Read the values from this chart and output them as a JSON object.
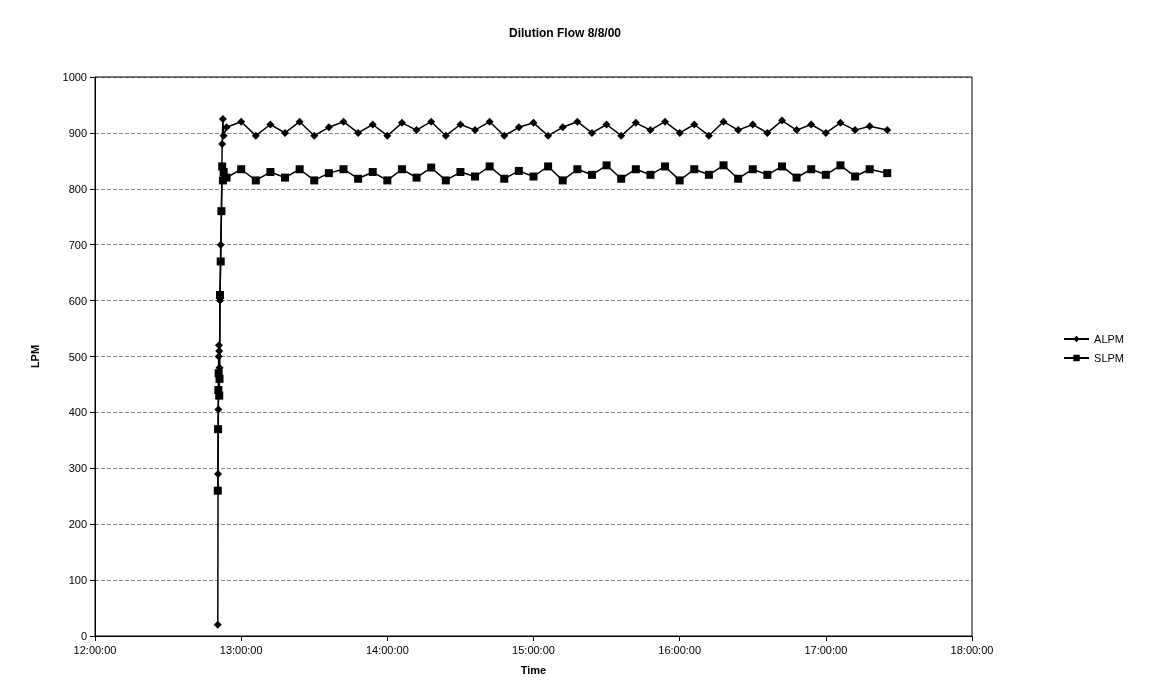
{
  "chart_data": {
    "type": "line",
    "title": "Dilution Flow 8/8/00",
    "xlabel": "Time",
    "ylabel": "LPM",
    "xlim": [
      12,
      18
    ],
    "xticks": [
      {
        "value": 12,
        "label": "12:00:00"
      },
      {
        "value": 13,
        "label": "13:00:00"
      },
      {
        "value": 14,
        "label": "14:00:00"
      },
      {
        "value": 15,
        "label": "15:00:00"
      },
      {
        "value": 16,
        "label": "16:00:00"
      },
      {
        "value": 17,
        "label": "17:00:00"
      },
      {
        "value": 18,
        "label": "18:00:00"
      }
    ],
    "ylim": [
      0,
      1000
    ],
    "yticks": [
      0,
      100,
      200,
      300,
      400,
      500,
      600,
      700,
      800,
      900,
      1000
    ],
    "grid": "y",
    "legend": "right",
    "line_style": "solid",
    "series": [
      {
        "name": "ALPM",
        "color": "#000000",
        "marker": "diamond",
        "x": [
          12.84,
          12.842,
          12.844,
          12.846,
          12.848,
          12.85,
          12.852,
          12.855,
          12.86,
          12.865,
          12.87,
          12.875,
          12.88,
          12.9,
          13.0,
          13.1,
          13.2,
          13.3,
          13.4,
          13.5,
          13.6,
          13.7,
          13.8,
          13.9,
          14.0,
          14.1,
          14.2,
          14.3,
          14.4,
          14.5,
          14.6,
          14.7,
          14.8,
          14.9,
          15.0,
          15.1,
          15.2,
          15.3,
          15.4,
          15.5,
          15.6,
          15.7,
          15.8,
          15.9,
          16.0,
          16.1,
          16.2,
          16.3,
          16.4,
          16.5,
          16.6,
          16.7,
          16.8,
          16.9,
          17.0,
          17.1,
          17.2,
          17.3,
          17.42
        ],
        "values": [
          20,
          290,
          405,
          500,
          520,
          510,
          480,
          600,
          700,
          760,
          880,
          925,
          895,
          910,
          920,
          895,
          915,
          900,
          920,
          895,
          910,
          920,
          900,
          915,
          895,
          918,
          905,
          920,
          895,
          915,
          905,
          920,
          895,
          910,
          918,
          895,
          910,
          920,
          900,
          915,
          895,
          918,
          905,
          920,
          900,
          915,
          895,
          920,
          905,
          915,
          900,
          922,
          905,
          915,
          900,
          918,
          905,
          912,
          905
        ]
      },
      {
        "name": "SLPM",
        "color": "#000000",
        "marker": "square",
        "x": [
          12.84,
          12.842,
          12.844,
          12.846,
          12.848,
          12.85,
          12.852,
          12.855,
          12.86,
          12.865,
          12.87,
          12.875,
          12.88,
          12.9,
          13.0,
          13.1,
          13.2,
          13.3,
          13.4,
          13.5,
          13.6,
          13.7,
          13.8,
          13.9,
          14.0,
          14.1,
          14.2,
          14.3,
          14.4,
          14.5,
          14.6,
          14.7,
          14.8,
          14.9,
          15.0,
          15.1,
          15.2,
          15.3,
          15.4,
          15.5,
          15.6,
          15.7,
          15.8,
          15.9,
          16.0,
          16.1,
          16.2,
          16.3,
          16.4,
          16.5,
          16.6,
          16.7,
          16.8,
          16.9,
          17.0,
          17.1,
          17.2,
          17.3,
          17.42
        ],
        "values": [
          260,
          370,
          440,
          470,
          null,
          430,
          460,
          610,
          670,
          760,
          840,
          815,
          830,
          820,
          835,
          815,
          830,
          820,
          835,
          815,
          828,
          835,
          818,
          830,
          815,
          835,
          820,
          838,
          815,
          830,
          822,
          840,
          818,
          832,
          822,
          840,
          815,
          835,
          825,
          842,
          818,
          835,
          825,
          840,
          815,
          835,
          825,
          842,
          818,
          835,
          825,
          840,
          820,
          835,
          825,
          842,
          822,
          835,
          828
        ]
      }
    ]
  }
}
